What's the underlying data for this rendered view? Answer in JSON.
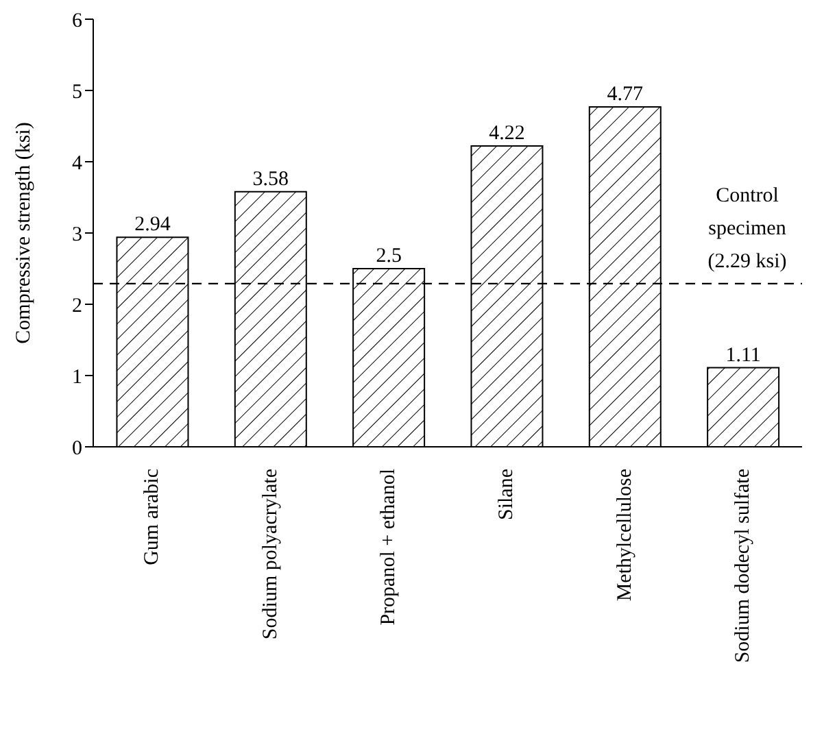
{
  "chart_data": {
    "type": "bar",
    "ylabel": "Compressive strength (ksi)",
    "categories": [
      "Gum arabic",
      "Sodium polyacrylate",
      "Propanol + ethanol",
      "Silane",
      "Methylcellulose",
      "Sodium dodecyl sulfate"
    ],
    "values": [
      2.94,
      3.58,
      2.5,
      4.22,
      4.77,
      1.11
    ],
    "color": "#000000",
    "data_labels": true,
    "ylim": [
      0,
      6
    ],
    "yticks": [
      0,
      1,
      2,
      3,
      4,
      5,
      6
    ],
    "grid": false,
    "ref_lines": [
      {
        "axis": "y",
        "value": 2.29,
        "label": "Control specimen (2.29 ksi)",
        "line_style": "dashed",
        "color": "#000000"
      }
    ]
  }
}
